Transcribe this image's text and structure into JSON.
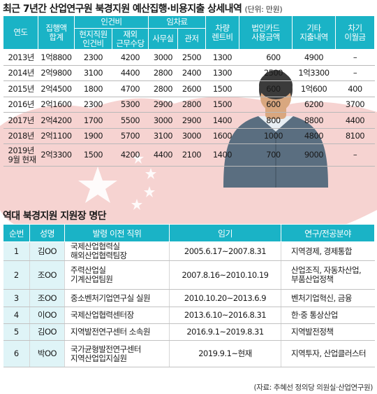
{
  "title1": "최근 7년간 산업연구원 북경지원 예산집행·비용지출 상세내역",
  "unit": "(단위: 만원)",
  "budget_table": {
    "headers": {
      "year": "연도",
      "total": "집행액\n합계",
      "labor": "인건비",
      "labor_local": "현지직원\n인건비",
      "labor_expat": "재외\n근무수당",
      "rent": "임차료",
      "rent_office": "사무실",
      "rent_residence": "관저",
      "vehicle": "차량\n렌트비",
      "card": "법인카드\n사용금액",
      "other": "기타\n지출내역",
      "loan": "차기\n이월금"
    },
    "rows": [
      {
        "year": "2013년",
        "total": "1억8800",
        "local": "2300",
        "expat": "4200",
        "office": "3000",
        "residence": "2500",
        "vehicle": "1300",
        "card": "600",
        "other": "4900",
        "loan": "–"
      },
      {
        "year": "2014년",
        "total": "2억9800",
        "local": "3100",
        "expat": "4400",
        "office": "2800",
        "residence": "2400",
        "vehicle": "1300",
        "card": "2500",
        "other": "1억3300",
        "loan": "–"
      },
      {
        "year": "2015년",
        "total": "2억4500",
        "local": "1800",
        "expat": "4700",
        "office": "2800",
        "residence": "2600",
        "vehicle": "1500",
        "card": "600",
        "other": "1억600",
        "loan": "400"
      },
      {
        "year": "2016년",
        "total": "2억1600",
        "local": "2300",
        "expat": "5300",
        "office": "2900",
        "residence": "2800",
        "vehicle": "1500",
        "card": "600",
        "other": "6200",
        "loan": "3700"
      },
      {
        "year": "2017년",
        "total": "2억4200",
        "local": "1700",
        "expat": "5500",
        "office": "3000",
        "residence": "2900",
        "vehicle": "1400",
        "card": "800",
        "other": "8800",
        "loan": "4400"
      },
      {
        "year": "2018년",
        "total": "2억1100",
        "local": "1900",
        "expat": "5700",
        "office": "3100",
        "residence": "3000",
        "vehicle": "1600",
        "card": "1000",
        "other": "4800",
        "loan": "8100"
      },
      {
        "year": "2019년\n9월 현재",
        "total": "2억3300",
        "local": "1500",
        "expat": "4200",
        "office": "4400",
        "residence": "2100",
        "vehicle": "1400",
        "card": "700",
        "other": "9000",
        "loan": "–"
      }
    ]
  },
  "title2": "역대 북경지원 지원장 명단",
  "heads_table": {
    "headers": {
      "no": "순번",
      "name": "성명",
      "prev": "발령 이전 직위",
      "term": "임기",
      "field": "연구/전공분야"
    },
    "rows": [
      {
        "no": "1",
        "name": "김OO",
        "prev": "국제산업협력실\n해외산업협력팀장",
        "term": "2005.6.17~2007.8.31",
        "field": "지역경제, 경제통합"
      },
      {
        "no": "2",
        "name": "조OO",
        "prev": "주력산업실\n기계산업팀원",
        "term": "2007.8.16~2010.10.19",
        "field": "산업조직, 자동차산업,\n부품산업정책"
      },
      {
        "no": "3",
        "name": "조OO",
        "prev": "중소벤처기업연구실 실원",
        "term": "2010.10.20~2013.6.9",
        "field": "벤처기업혁신, 금융"
      },
      {
        "no": "4",
        "name": "이OO",
        "prev": "국제산업협력센터장",
        "term": "2013.6.10~2016.8.31",
        "field": "한·중 통상산업"
      },
      {
        "no": "5",
        "name": "김OO",
        "prev": "지역발전연구센터 소속원",
        "term": "2016.9.1~2019.8.31",
        "field": "지역발전정책"
      },
      {
        "no": "6",
        "name": "박OO",
        "prev": "국가균형발전연구센터\n지역산업입지실원",
        "term": "2019.9.1~현재",
        "field": "지역투자, 산업클러스터"
      }
    ]
  },
  "source": "(자료: 추혜선 정의당 의원실·산업연구원)",
  "colors": {
    "header_bg": "#1ab3c6",
    "map_red": "#f2c3c0",
    "star_white": "#ffffff",
    "suit": "#5a6e80"
  }
}
